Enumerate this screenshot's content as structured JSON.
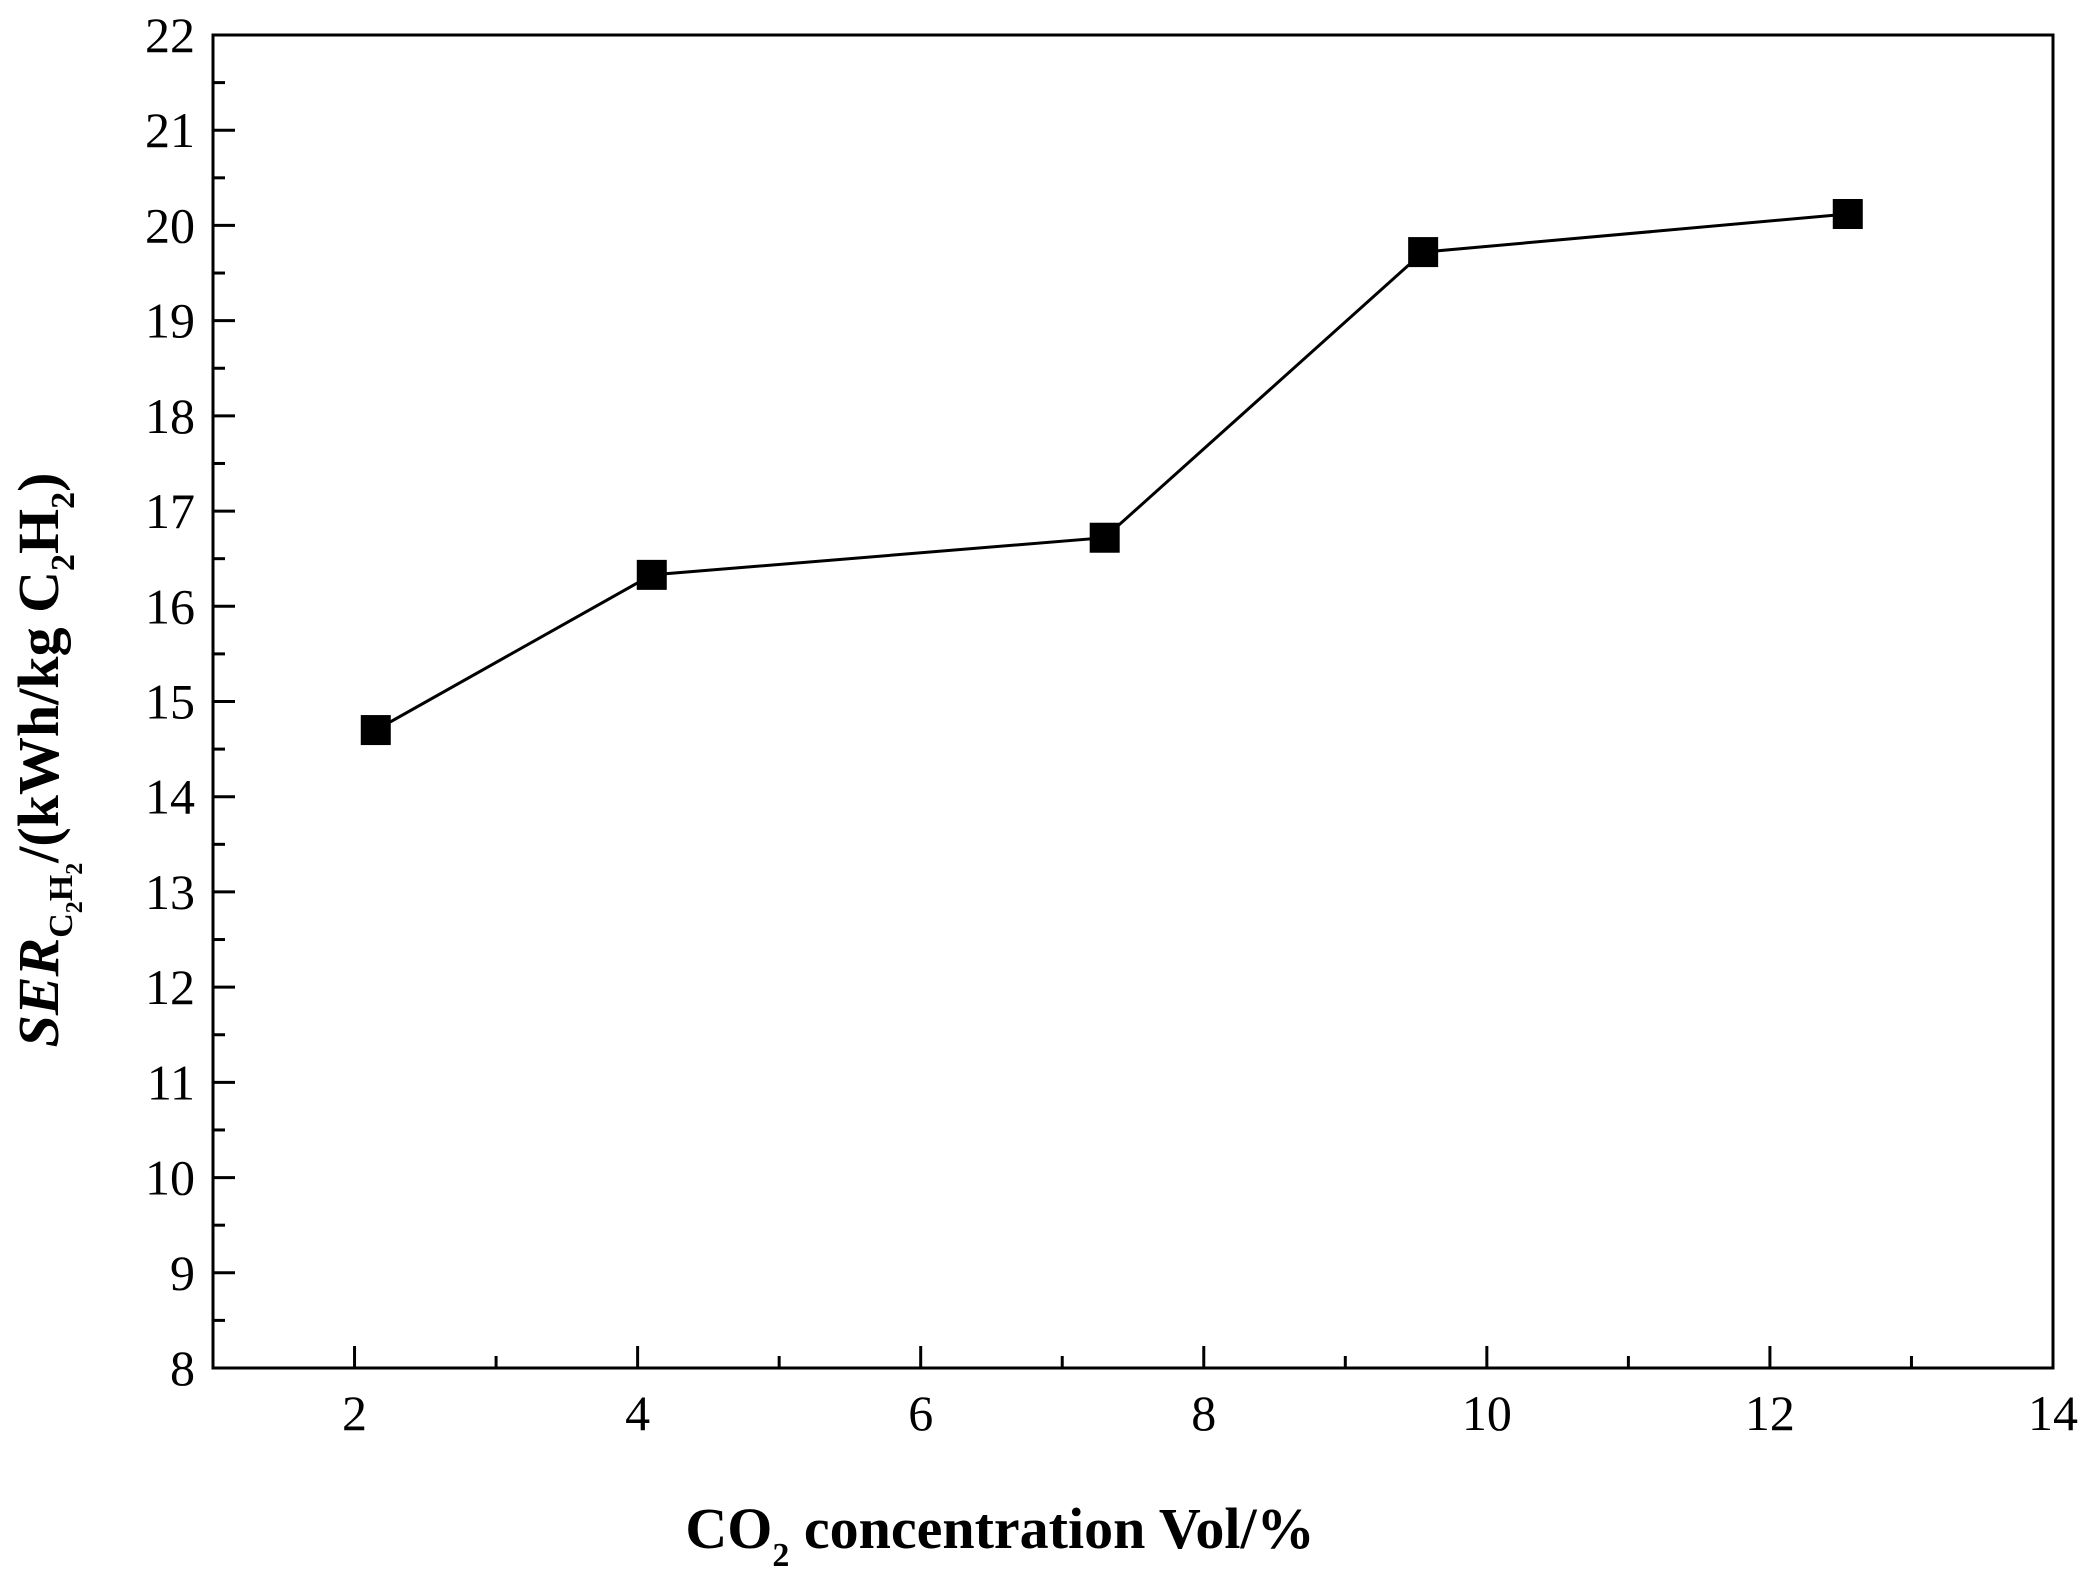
{
  "chart_data": {
    "type": "line",
    "title": "",
    "xlabel": {
      "prefix": "CO",
      "subscript": "2",
      "suffix": " concentration Vol/%"
    },
    "ylabel": {
      "main": "SER",
      "main_subscript": {
        "c": "C",
        "c_sub": "2",
        "h": "H",
        "h_sub": "2"
      },
      "unit_prefix": "/(kWh/kg C",
      "unit_c_sub": "2",
      "unit_h": "H",
      "unit_h_sub": "2",
      "unit_suffix": ")"
    },
    "xlim": [
      1,
      14
    ],
    "ylim": [
      8,
      22
    ],
    "xticks": [
      2,
      4,
      6,
      8,
      10,
      12,
      14
    ],
    "yticks": [
      8,
      9,
      10,
      11,
      12,
      13,
      14,
      15,
      16,
      17,
      18,
      19,
      20,
      21,
      22
    ],
    "grid": false,
    "series": [
      {
        "name": "SER C2H2",
        "marker": "square",
        "color": "#000000",
        "x": [
          2.15,
          4.1,
          7.3,
          9.55,
          12.55
        ],
        "y": [
          14.7,
          16.33,
          16.72,
          19.72,
          20.12
        ]
      }
    ]
  }
}
